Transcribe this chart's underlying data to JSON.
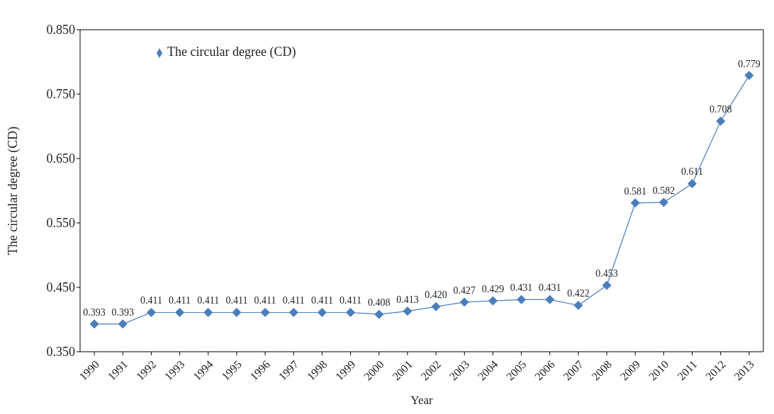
{
  "chart_data": {
    "type": "line",
    "xlabel": "Year",
    "ylabel": "The circular degree (CD)",
    "categories": [
      "1990",
      "1991",
      "1992",
      "1993",
      "1994",
      "1995",
      "1996",
      "1997",
      "1998",
      "1999",
      "2000",
      "2001",
      "2002",
      "2003",
      "2004",
      "2005",
      "2006",
      "2007",
      "2008",
      "2009",
      "2010",
      "2011",
      "2012",
      "2013"
    ],
    "series": [
      {
        "name": "The circular degree (CD)",
        "color": "#4a7ebb",
        "values": [
          0.393,
          0.393,
          0.411,
          0.411,
          0.411,
          0.411,
          0.411,
          0.411,
          0.411,
          0.411,
          0.408,
          0.413,
          0.42,
          0.427,
          0.429,
          0.431,
          0.431,
          0.422,
          0.453,
          0.581,
          0.582,
          0.611,
          0.708,
          0.779
        ],
        "value_labels": [
          "0.393",
          "0.393",
          "0.411",
          "0.411",
          "0.411",
          "0.411",
          "0.411",
          "0.411",
          "0.411",
          "0.411",
          "0.408",
          "0.413",
          "0.420",
          "0.427",
          "0.429",
          "0.431",
          "0.431",
          "0.422",
          "0.453",
          "0.581",
          "0.582",
          "0.611",
          "0.708",
          "0.779"
        ]
      }
    ],
    "ylim": [
      0.35,
      0.85
    ],
    "yticks": [
      {
        "value": 0.35,
        "label": "0.350"
      },
      {
        "value": 0.45,
        "label": "0.450"
      },
      {
        "value": 0.55,
        "label": "0.550"
      },
      {
        "value": 0.65,
        "label": "0.650"
      },
      {
        "value": 0.75,
        "label": "0.750"
      },
      {
        "value": 0.85,
        "label": "0.850"
      }
    ],
    "grid": false,
    "legend": "top left",
    "marker": "diamond",
    "line_style": "solid"
  }
}
